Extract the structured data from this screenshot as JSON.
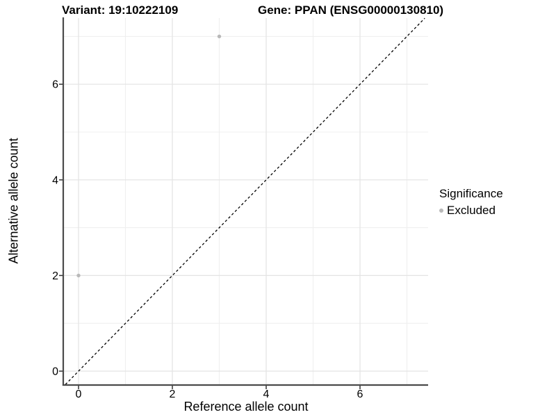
{
  "chart_data": {
    "type": "scatter",
    "title_left": "Variant: 19:10222109",
    "title_right": "Gene: PPAN (ENSG00000130810)",
    "xlabel": "Reference allele count",
    "ylabel": "Alternative allele count",
    "x_ticks": [
      0,
      2,
      4,
      6
    ],
    "y_ticks": [
      0,
      2,
      4,
      6
    ],
    "x_minor_ticks": [
      1,
      3,
      5,
      7
    ],
    "y_minor_ticks": [
      1,
      3,
      5,
      7
    ],
    "xlim": [
      -0.31,
      7.48
    ],
    "ylim": [
      -0.28,
      7.38
    ],
    "grid": "major+minor",
    "points": [
      {
        "x": 0,
        "y": 2,
        "series": "Excluded"
      },
      {
        "x": 3,
        "y": 7,
        "series": "Excluded"
      }
    ],
    "reference_line": {
      "type": "identity",
      "slope": 1,
      "intercept": 0,
      "style": "dashed"
    },
    "legend": {
      "title": "Significance",
      "position": "right",
      "items": [
        {
          "label": "Excluded",
          "color": "#b9b9b9"
        }
      ]
    }
  },
  "colors": {
    "background": "#ffffff",
    "grid_major": "#e3e3e3",
    "grid_minor": "#efefef",
    "axis_line": "#4a4a4a",
    "tick_mark": "#333333",
    "reference_line": "#000000",
    "point": "#b9b9b9",
    "text": "#000000"
  }
}
